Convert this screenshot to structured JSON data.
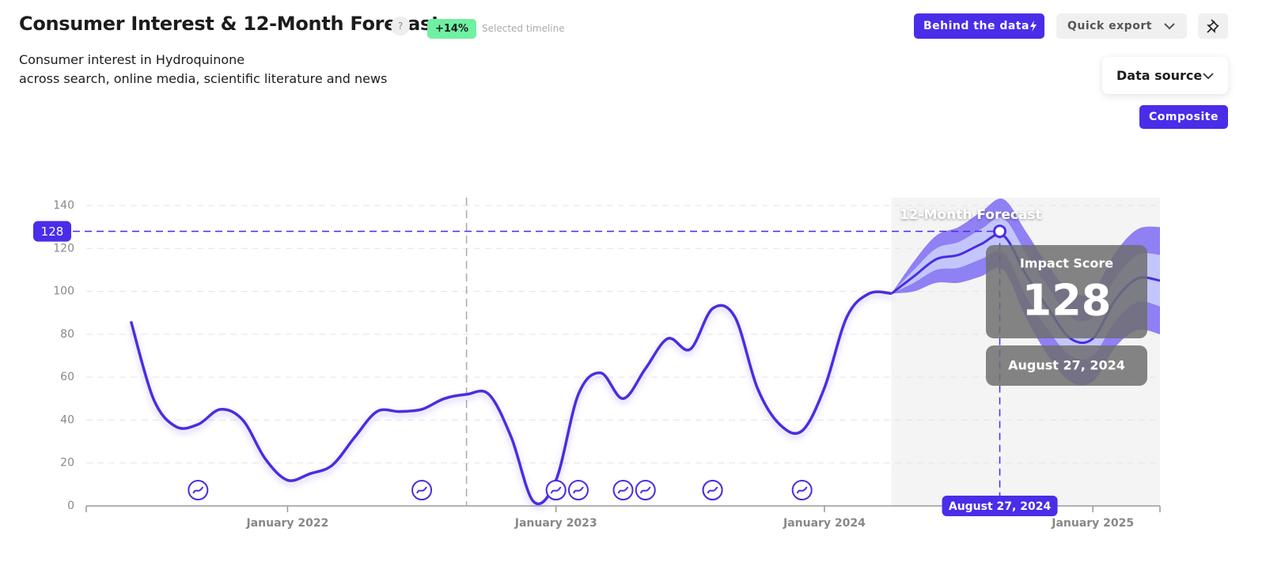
{
  "header": {
    "title": "Consumer Interest & 12-Month Forecast",
    "help": "?",
    "change": "+14%",
    "change_label": "Selected timeline",
    "subtitle": [
      "Consumer interest in Hydroquinone",
      "across search, online media, scientific literature and news"
    ]
  },
  "controls": {
    "behind_the_data": "Behind the data",
    "quick_export": "Quick export",
    "data_source": "Data source",
    "composite": "Composite"
  },
  "chart_data": {
    "type": "line",
    "x": [
      "2021-06",
      "2021-07",
      "2021-08",
      "2021-09",
      "2021-10",
      "2021-11",
      "2021-12",
      "2022-01",
      "2022-02",
      "2022-03",
      "2022-04",
      "2022-05",
      "2022-06",
      "2022-07",
      "2022-08",
      "2022-09",
      "2022-10",
      "2022-11",
      "2022-12",
      "2023-01",
      "2023-02",
      "2023-03",
      "2023-04",
      "2023-05",
      "2023-06",
      "2023-07",
      "2023-08",
      "2023-09",
      "2023-10",
      "2023-11",
      "2023-12",
      "2024-01",
      "2024-02",
      "2024-03",
      "2024-04"
    ],
    "series": [
      {
        "color": "#4a2de0",
        "values": [
          86,
          50,
          37,
          38,
          45,
          40,
          22,
          12,
          15,
          19,
          32,
          44,
          44,
          45,
          50,
          52,
          52,
          32,
          2,
          12,
          52,
          62,
          50,
          64,
          78,
          73,
          92,
          88,
          55,
          38,
          35,
          55,
          88,
          99,
          99
        ]
      }
    ],
    "forecast": {
      "label": "12-Month Forecast",
      "color": "#4a2de0",
      "inner_color": "#c3c6fb",
      "outer_color": "#8f80f4",
      "x": [
        "2024-04",
        "2024-05",
        "2024-06",
        "2024-07",
        "2024-08",
        "2024-09",
        "2024-10",
        "2024-11",
        "2024-12",
        "2025-01",
        "2025-02",
        "2025-03",
        "2025-04"
      ],
      "values": [
        99,
        107,
        115,
        117,
        122,
        126,
        108,
        92,
        78,
        78,
        96,
        106,
        105
      ],
      "inner_low": [
        99,
        104,
        110,
        111,
        115,
        118,
        98,
        82,
        70,
        70,
        86,
        95,
        93
      ],
      "inner_high": [
        99,
        110,
        120,
        123,
        129,
        134,
        118,
        102,
        88,
        88,
        106,
        117,
        117
      ],
      "outer_low": [
        99,
        100,
        104,
        104,
        107,
        110,
        88,
        70,
        58,
        58,
        74,
        82,
        80
      ],
      "outer_high": [
        99,
        114,
        126,
        130,
        137,
        143,
        128,
        112,
        100,
        100,
        118,
        129,
        130
      ]
    },
    "events": [
      "2021-09",
      "2022-07",
      "2023-01",
      "2023-01",
      "2023-02",
      "2023-04",
      "2023-05",
      "2023-08",
      "2023-08",
      "2023-12"
    ],
    "selection": "2022-09",
    "highlight": {
      "x": "2024-08-27",
      "value": 128,
      "title": "Impact Score",
      "label": "August 27, 2024"
    },
    "xlim": [
      "2021-04",
      "2025-04"
    ],
    "xticks": [
      {
        "value": "2022-01",
        "label": "January 2022"
      },
      {
        "value": "2023-01",
        "label": "January 2023"
      },
      {
        "value": "2024-01",
        "label": "January 2024"
      },
      {
        "value": "2025-01",
        "label": "January 2025"
      }
    ],
    "ylim": [
      0,
      140
    ],
    "yticks": [
      0,
      20,
      40,
      60,
      80,
      100,
      120,
      140
    ],
    "grid": true
  }
}
